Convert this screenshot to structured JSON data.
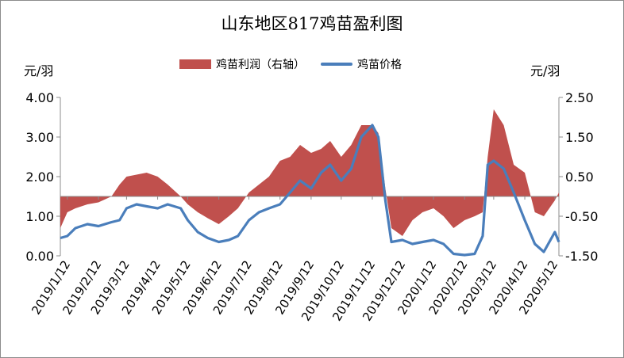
{
  "chart_data": {
    "type": "line",
    "title": "山东地区817鸡苗盈利图",
    "left_unit": "元/羽",
    "right_unit": "元/羽",
    "legend_position": "top",
    "y_left_ticks": [
      "0.00",
      "1.00",
      "2.00",
      "3.00",
      "4.00"
    ],
    "y_right_ticks": [
      "-1.50",
      "-0.50",
      "0.50",
      "1.50",
      "2.50"
    ],
    "ylim_left": [
      0,
      4
    ],
    "ylim_right": [
      -1.5,
      2.5
    ],
    "x_tick_labels": [
      "2019/1/12",
      "2019/2/12",
      "2019/3/12",
      "2019/4/12",
      "2019/5/12",
      "2019/6/12",
      "2019/7/12",
      "2019/8/12",
      "2019/9/12",
      "2019/10/12",
      "2019/11/12",
      "2019/12/12",
      "2020/1/12",
      "2020/2/12",
      "2020/3/12",
      "2020/4/12",
      "2020/5/12"
    ],
    "series": [
      {
        "name": "鸡苗利润（右轴）",
        "axis": "right",
        "style": "area",
        "color": "#c0504d",
        "x": [
          "2019/1/5",
          "2019/1/12",
          "2019/1/20",
          "2019/2/1",
          "2019/2/12",
          "2019/2/25",
          "2019/3/5",
          "2019/3/12",
          "2019/3/22",
          "2019/4/1",
          "2019/4/12",
          "2019/4/22",
          "2019/5/5",
          "2019/5/12",
          "2019/5/22",
          "2019/6/1",
          "2019/6/12",
          "2019/6/22",
          "2019/7/1",
          "2019/7/12",
          "2019/7/22",
          "2019/8/1",
          "2019/8/12",
          "2019/8/22",
          "2019/9/1",
          "2019/9/12",
          "2019/9/22",
          "2019/10/1",
          "2019/10/12",
          "2019/10/22",
          "2019/11/1",
          "2019/11/12",
          "2019/11/18",
          "2019/11/25",
          "2019/12/1",
          "2019/12/12",
          "2019/12/22",
          "2020/1/1",
          "2020/1/12",
          "2020/1/22",
          "2020/2/1",
          "2020/2/12",
          "2020/2/22",
          "2020/3/1",
          "2020/3/6",
          "2020/3/12",
          "2020/3/22",
          "2020/4/1",
          "2020/4/12",
          "2020/4/22",
          "2020/5/1",
          "2020/5/12",
          "2020/5/16"
        ],
        "values": [
          -0.8,
          -0.4,
          -0.3,
          -0.2,
          -0.15,
          0.0,
          0.3,
          0.5,
          0.55,
          0.6,
          0.5,
          0.3,
          0.0,
          -0.2,
          -0.4,
          -0.55,
          -0.7,
          -0.5,
          -0.3,
          0.1,
          0.3,
          0.5,
          0.9,
          1.0,
          1.3,
          1.1,
          1.2,
          1.4,
          1.0,
          1.3,
          1.8,
          1.8,
          1.6,
          0.2,
          -0.8,
          -1.0,
          -0.6,
          -0.4,
          -0.3,
          -0.5,
          -0.8,
          -0.6,
          -0.5,
          -0.4,
          1.0,
          2.2,
          1.8,
          0.8,
          0.6,
          -0.4,
          -0.5,
          -0.1,
          0.1
        ]
      },
      {
        "name": "鸡苗价格",
        "axis": "left",
        "style": "line",
        "color": "#4a7ebb",
        "x": [
          "2019/1/5",
          "2019/1/12",
          "2019/1/20",
          "2019/2/1",
          "2019/2/12",
          "2019/2/25",
          "2019/3/5",
          "2019/3/12",
          "2019/3/22",
          "2019/4/1",
          "2019/4/12",
          "2019/4/22",
          "2019/5/5",
          "2019/5/12",
          "2019/5/22",
          "2019/6/1",
          "2019/6/12",
          "2019/6/22",
          "2019/7/1",
          "2019/7/12",
          "2019/7/22",
          "2019/8/1",
          "2019/8/12",
          "2019/8/22",
          "2019/9/1",
          "2019/9/12",
          "2019/9/22",
          "2019/10/1",
          "2019/10/12",
          "2019/10/22",
          "2019/11/1",
          "2019/11/12",
          "2019/11/18",
          "2019/11/25",
          "2019/12/1",
          "2019/12/12",
          "2019/12/22",
          "2020/1/1",
          "2020/1/12",
          "2020/1/22",
          "2020/2/1",
          "2020/2/12",
          "2020/2/22",
          "2020/3/1",
          "2020/3/6",
          "2020/3/12",
          "2020/3/22",
          "2020/4/1",
          "2020/4/12",
          "2020/4/22",
          "2020/5/1",
          "2020/5/12",
          "2020/5/16"
        ],
        "values": [
          0.45,
          0.5,
          0.7,
          0.8,
          0.75,
          0.85,
          0.9,
          1.2,
          1.3,
          1.25,
          1.2,
          1.3,
          1.2,
          0.9,
          0.6,
          0.45,
          0.35,
          0.4,
          0.5,
          0.9,
          1.1,
          1.2,
          1.3,
          1.6,
          1.9,
          1.7,
          2.1,
          2.3,
          1.9,
          2.2,
          3.0,
          3.3,
          3.0,
          1.4,
          0.35,
          0.4,
          0.3,
          0.35,
          0.4,
          0.3,
          0.05,
          0.02,
          0.05,
          0.5,
          2.3,
          2.4,
          2.2,
          1.6,
          0.9,
          0.3,
          0.1,
          0.6,
          0.35
        ]
      }
    ]
  }
}
